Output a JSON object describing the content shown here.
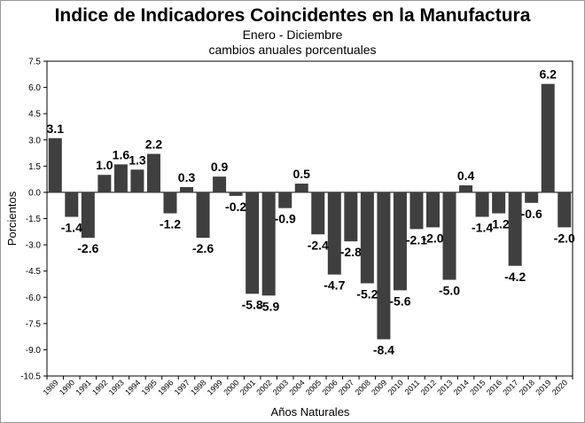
{
  "chart_data": {
    "type": "bar",
    "title": "Indice de Indicadores Coincidentes en la Manufactura",
    "subtitle": [
      "Enero - Diciembre",
      "cambios anuales porcentuales"
    ],
    "xlabel": "Años Naturales",
    "ylabel": "Porcientos",
    "ylim": [
      -10.5,
      7.5
    ],
    "yticks": [
      "7.5",
      "6.0",
      "4.5",
      "3.0",
      "1.5",
      "0.0",
      "-1.5",
      "-3.0",
      "-4.5",
      "-6.0",
      "-7.5",
      "-9.0",
      "-10.5"
    ],
    "grid": false,
    "bar_color": "#3f3f3f",
    "categories": [
      "1989",
      "1990",
      "1991",
      "1992",
      "1993",
      "1994",
      "1995",
      "1996",
      "1997",
      "1998",
      "1999",
      "2000",
      "2001",
      "2002",
      "2003",
      "2004",
      "2005",
      "2006",
      "2007",
      "2008",
      "2009",
      "2010",
      "2011",
      "2012",
      "2013",
      "2014",
      "2015",
      "2016",
      "2017",
      "2018",
      "2019",
      "2020"
    ],
    "values": [
      3.1,
      -1.4,
      -2.6,
      1.0,
      1.6,
      1.3,
      2.2,
      -1.2,
      0.3,
      -2.6,
      0.9,
      -0.2,
      -5.8,
      -5.9,
      -0.9,
      0.5,
      -2.4,
      -4.7,
      -2.8,
      -5.2,
      -8.4,
      -5.6,
      -2.1,
      -2.0,
      -5.0,
      0.4,
      -1.4,
      -1.2,
      -4.2,
      -0.6,
      6.2,
      -2.0
    ],
    "labels": [
      "3.1",
      "-1.4",
      "-2.6",
      "1.0",
      "1.6",
      "1.3",
      "2.2",
      "-1.2",
      "0.3",
      "-2.6",
      "0.9",
      "-0.2",
      "-5.8",
      "-5.9",
      "-0.9",
      "0.5",
      "-2.4",
      "-4.7",
      "-2.8",
      "-5.2",
      "-8.4",
      "-5.6",
      "-2.1",
      "-2.0",
      "-5.0",
      "0.4",
      "-1.4",
      "-1.2",
      "-4.2",
      "-0.6",
      "6.2",
      "-2.0"
    ]
  }
}
